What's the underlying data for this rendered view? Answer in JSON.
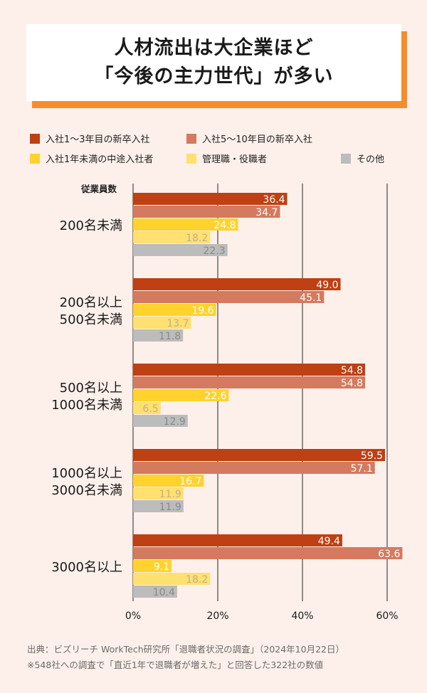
{
  "title": {
    "line1": "人材流出は大企業ほど",
    "line2": "「今後の主力世代」が多い"
  },
  "colors": {
    "background": "#fdf0ea",
    "title_accent": "#f98c2a",
    "gridline": "#555555"
  },
  "chart_data": {
    "type": "bar",
    "orientation": "horizontal",
    "title": "人材流出は大企業ほど「今後の主力世代」が多い",
    "ylabel": "従業員数",
    "xlabel": "",
    "xlim": [
      0,
      60
    ],
    "xticks": [
      0,
      20,
      40,
      60
    ],
    "xtick_labels": [
      "0%",
      "20%",
      "40%",
      "60%"
    ],
    "grid": true,
    "legend_position": "top",
    "categories": [
      [
        "200名未満"
      ],
      [
        "200名以上",
        "500名未満"
      ],
      [
        "500名以上",
        "1000名未満"
      ],
      [
        "1000名以上",
        "3000名未満"
      ],
      [
        "3000名以上"
      ]
    ],
    "series": [
      {
        "name": "入社1〜3年目の新卒入社",
        "color": "#be4013",
        "label_color": "#ffffff",
        "values": [
          36.4,
          49.0,
          54.8,
          59.5,
          49.4
        ]
      },
      {
        "name": "入社5〜10年目の新卒入社",
        "color": "#d47a5e",
        "label_color": "#ffffff",
        "values": [
          34.7,
          45.1,
          54.8,
          57.1,
          63.6
        ]
      },
      {
        "name": "入社1年未満の中途入社者",
        "color": "#ffd22e",
        "label_color": "#ffffff",
        "values": [
          24.8,
          19.6,
          22.6,
          16.7,
          9.1
        ]
      },
      {
        "name": "管理職・役職者",
        "color": "#ffe070",
        "label_color": "#c0b090",
        "values": [
          18.2,
          13.7,
          6.5,
          11.9,
          18.2
        ]
      },
      {
        "name": "その他",
        "color": "#bcbcbc",
        "label_color": "#8a8a8a",
        "values": [
          22.3,
          11.8,
          12.9,
          11.9,
          10.4
        ]
      }
    ]
  },
  "footer": {
    "source": "出典：ビズリーチ WorkTech研究所「退職者状況の調査」（2024年10月22日）",
    "note": "※548社への調査で「直近1年で退職者が増えた」と回答した322社の数値"
  }
}
